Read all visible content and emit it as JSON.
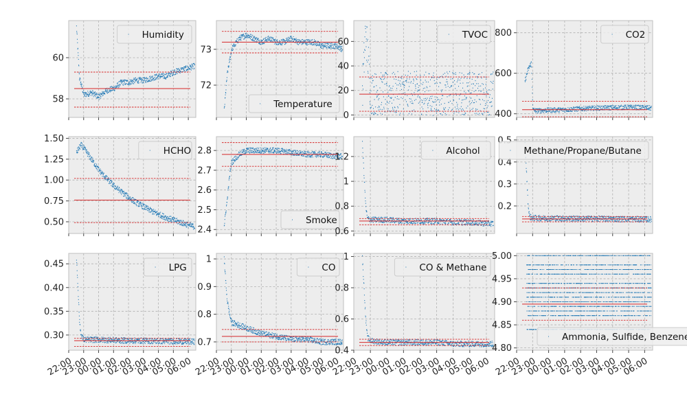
{
  "chart_data": [
    {
      "type": "scatter",
      "ylim": [
        57.1,
        61.8
      ],
      "yticks": [
        58,
        60
      ],
      "legend": {
        "label": "Humidity",
        "loc": "upper right"
      },
      "series": [
        {
          "name": "Humidity",
          "x": [
            22.5,
            22.7,
            23.0,
            23.5,
            0.0,
            0.5,
            1.0,
            1.5,
            2.0,
            2.5,
            3.0,
            3.5,
            4.0,
            4.5,
            5.0,
            5.5,
            6.0,
            6.4
          ],
          "y": [
            61.5,
            59.0,
            58.2,
            58.3,
            58.1,
            58.4,
            58.5,
            58.8,
            58.8,
            58.9,
            58.9,
            59.0,
            59.1,
            59.1,
            59.3,
            59.4,
            59.5,
            59.6
          ]
        }
      ],
      "hlines": {
        "mean": 58.5,
        "band": [
          57.6,
          59.3
        ]
      }
    },
    {
      "type": "scatter",
      "ylim": [
        71.1,
        73.8
      ],
      "yticks": [
        72,
        73
      ],
      "legend": {
        "label": "Temperature",
        "loc": "lower right"
      },
      "series": [
        {
          "name": "Temperature",
          "x": [
            22.5,
            22.7,
            23.0,
            23.5,
            0.0,
            0.5,
            1.0,
            1.5,
            2.0,
            2.5,
            3.0,
            3.5,
            4.0,
            4.5,
            5.0,
            5.5,
            6.0,
            6.4
          ],
          "y": [
            71.3,
            72.3,
            73.0,
            73.3,
            73.4,
            73.3,
            73.2,
            73.3,
            73.2,
            73.2,
            73.3,
            73.2,
            73.2,
            73.2,
            73.1,
            73.1,
            73.1,
            73.0
          ]
        }
      ],
      "hlines": {
        "mean": 73.2,
        "band": [
          72.9,
          73.5
        ]
      }
    },
    {
      "type": "scatter",
      "ylim": [
        -2,
        77
      ],
      "yticks": [
        0,
        20,
        40,
        60
      ],
      "legend": {
        "label": "TVOC",
        "loc": "upper right"
      },
      "series": [
        {
          "name": "TVOC",
          "x": [
            22.5,
            22.7,
            23.0,
            0.0,
            1.0,
            2.0,
            3.0,
            4.0,
            5.0,
            6.0,
            6.4
          ],
          "y": [
            20,
            70,
            18,
            17,
            18,
            18,
            17,
            18,
            18,
            17,
            18
          ]
        }
      ],
      "hlines": {
        "mean": 17,
        "band": [
          3,
          31
        ]
      }
    },
    {
      "type": "scatter",
      "ylim": [
        382,
        860
      ],
      "yticks": [
        400,
        600,
        800
      ],
      "legend": {
        "label": "CO2",
        "loc": "upper right"
      },
      "series": [
        {
          "name": "CO2",
          "x": [
            22.5,
            22.7,
            22.9,
            23.0,
            23.2,
            0.0,
            1.0,
            2.0,
            3.0,
            4.0,
            5.0,
            6.0,
            6.4
          ],
          "y": [
            560,
            620,
            650,
            420,
            415,
            418,
            420,
            425,
            428,
            430,
            432,
            430,
            428
          ]
        }
      ],
      "hlines": {
        "mean": 420,
        "band": [
          385,
          462
        ]
      }
    },
    {
      "type": "scatter",
      "ylim": [
        0.36,
        1.52
      ],
      "yticks": [
        0.5,
        0.75,
        1.0,
        1.25,
        1.5
      ],
      "yticklabels": [
        "0.50",
        "0.75",
        "1.00",
        "1.25",
        "1.50"
      ],
      "legend": {
        "label": "HCHO",
        "loc": "upper right"
      },
      "series": [
        {
          "name": "HCHO",
          "x": [
            22.5,
            22.8,
            23.0,
            23.5,
            0.0,
            0.5,
            1.0,
            1.5,
            2.0,
            2.5,
            3.0,
            3.5,
            4.0,
            4.5,
            5.0,
            5.5,
            6.0,
            6.4
          ],
          "y": [
            1.33,
            1.42,
            1.38,
            1.25,
            1.12,
            1.02,
            0.93,
            0.86,
            0.79,
            0.73,
            0.68,
            0.63,
            0.59,
            0.55,
            0.52,
            0.49,
            0.46,
            0.44
          ]
        }
      ],
      "hlines": {
        "mean": 0.76,
        "band": [
          0.49,
          1.02
        ]
      }
    },
    {
      "type": "scatter",
      "ylim": [
        2.38,
        2.87
      ],
      "yticks": [
        2.4,
        2.5,
        2.6,
        2.7,
        2.8
      ],
      "legend": {
        "label": "Smoke",
        "loc": "lower right"
      },
      "series": [
        {
          "name": "Smoke",
          "x": [
            22.5,
            22.7,
            22.9,
            23.0,
            23.5,
            0.0,
            1.0,
            2.0,
            3.0,
            4.0,
            5.0,
            6.0,
            6.4
          ],
          "y": [
            2.42,
            2.55,
            2.7,
            2.74,
            2.78,
            2.8,
            2.8,
            2.8,
            2.79,
            2.78,
            2.78,
            2.77,
            2.77
          ]
        }
      ],
      "hlines": {
        "mean": 2.78,
        "band": [
          2.72,
          2.84
        ]
      }
    },
    {
      "type": "scatter",
      "ylim": [
        0.58,
        1.36
      ],
      "yticks": [
        0.6,
        0.8,
        1.0,
        1.2
      ],
      "legend": {
        "label": "Alcohol",
        "loc": "upper right"
      },
      "series": [
        {
          "name": "Alcohol",
          "x": [
            22.5,
            22.6,
            22.7,
            22.8,
            23.0,
            0.0,
            1.0,
            2.0,
            3.0,
            4.0,
            5.0,
            6.0,
            6.4
          ],
          "y": [
            1.3,
            1.05,
            0.8,
            0.7,
            0.69,
            0.69,
            0.68,
            0.68,
            0.68,
            0.67,
            0.67,
            0.66,
            0.66
          ]
        }
      ],
      "hlines": {
        "mean": 0.68,
        "band": [
          0.65,
          0.7
        ]
      }
    },
    {
      "type": "scatter",
      "ylim": [
        0.075,
        0.515
      ],
      "yticks": [
        0.2,
        0.3,
        0.4,
        0.5
      ],
      "legend": {
        "label": "Methane/Propane/Butane",
        "loc": "upper right"
      },
      "series": [
        {
          "name": "Methane/Propane/Butane",
          "x": [
            22.5,
            22.6,
            22.7,
            22.8,
            23.0,
            0.0,
            1.0,
            2.0,
            3.0,
            4.0,
            5.0,
            6.0,
            6.4
          ],
          "y": [
            0.48,
            0.35,
            0.2,
            0.15,
            0.145,
            0.144,
            0.143,
            0.142,
            0.142,
            0.141,
            0.14,
            0.139,
            0.139
          ]
        }
      ],
      "hlines": {
        "mean": 0.141,
        "band": [
          0.128,
          0.152
        ]
      }
    },
    {
      "type": "scatter",
      "ylim": [
        0.268,
        0.472
      ],
      "yticks": [
        0.3,
        0.35,
        0.4,
        0.45
      ],
      "yticklabels": [
        "0.30",
        "0.35",
        "0.40",
        "0.45"
      ],
      "legend": {
        "label": "LPG",
        "loc": "upper right"
      },
      "series": [
        {
          "name": "LPG",
          "x": [
            22.5,
            22.6,
            22.7,
            22.8,
            23.0,
            0.0,
            1.0,
            2.0,
            3.0,
            4.0,
            5.0,
            6.0,
            6.4
          ],
          "y": [
            0.46,
            0.4,
            0.33,
            0.3,
            0.29,
            0.29,
            0.289,
            0.288,
            0.288,
            0.287,
            0.287,
            0.286,
            0.286
          ]
        }
      ],
      "hlines": {
        "mean": 0.288,
        "band": [
          0.276,
          0.293
        ]
      }
    },
    {
      "type": "scatter",
      "ylim": [
        0.67,
        1.02
      ],
      "yticks": [
        0.7,
        0.8,
        0.9,
        1.0
      ],
      "legend": {
        "label": "CO",
        "loc": "upper right"
      },
      "series": [
        {
          "name": "CO",
          "x": [
            22.5,
            22.6,
            22.7,
            22.9,
            23.0,
            23.5,
            0.0,
            1.0,
            2.0,
            3.0,
            4.0,
            5.0,
            6.0,
            6.4
          ],
          "y": [
            1.0,
            0.92,
            0.85,
            0.79,
            0.77,
            0.76,
            0.75,
            0.73,
            0.72,
            0.71,
            0.71,
            0.7,
            0.7,
            0.7
          ]
        }
      ],
      "hlines": {
        "mean": 0.72,
        "band": [
          0.7,
          0.745
        ]
      }
    },
    {
      "type": "scatter",
      "ylim": [
        0.4,
        1.02
      ],
      "yticks": [
        0.4,
        0.6,
        0.8,
        1.0
      ],
      "legend": {
        "label": "CO & Methane",
        "loc": "upper right"
      },
      "series": [
        {
          "name": "CO & Methane",
          "x": [
            22.5,
            22.6,
            22.7,
            22.8,
            23.0,
            0.0,
            1.0,
            2.0,
            3.0,
            4.0,
            5.0,
            6.0,
            6.4
          ],
          "y": [
            0.99,
            0.8,
            0.6,
            0.48,
            0.46,
            0.45,
            0.45,
            0.45,
            0.45,
            0.44,
            0.44,
            0.44,
            0.44
          ]
        }
      ],
      "hlines": {
        "mean": 0.45,
        "band": [
          0.43,
          0.47
        ]
      }
    },
    {
      "type": "scatter",
      "ylim": [
        4.795,
        5.005
      ],
      "yticks": [
        4.8,
        4.85,
        4.9,
        4.95,
        5.0
      ],
      "yticklabels": [
        "4.80",
        "4.85",
        "4.90",
        "4.95",
        "5.00"
      ],
      "legend": {
        "label": "Ammonia, Sulfide, Benzene",
        "loc": "lower right"
      },
      "series": [
        {
          "name": "Ammonia, Sulfide, Benzene",
          "levels": [
            4.84,
            4.87,
            4.88,
            4.89,
            4.9,
            4.91,
            4.92,
            4.93,
            4.94,
            4.96,
            4.97,
            4.98,
            5.0
          ]
        }
      ],
      "hlines": {
        "mean": 4.895,
        "band": [
          4.86,
          4.93
        ]
      }
    }
  ],
  "shared_x": {
    "start": 22.0,
    "end": 6.5,
    "ticklabels": [
      "22:00",
      "23:00",
      "00:00",
      "01:00",
      "02:00",
      "03:00",
      "04:00",
      "05:00",
      "06:00"
    ]
  },
  "colors": {
    "data": "#1f77b4",
    "mean_line": "#d62728",
    "band_line": "#d62728",
    "background": "#ededed",
    "grid": "#b0b0b0"
  },
  "grid": true
}
